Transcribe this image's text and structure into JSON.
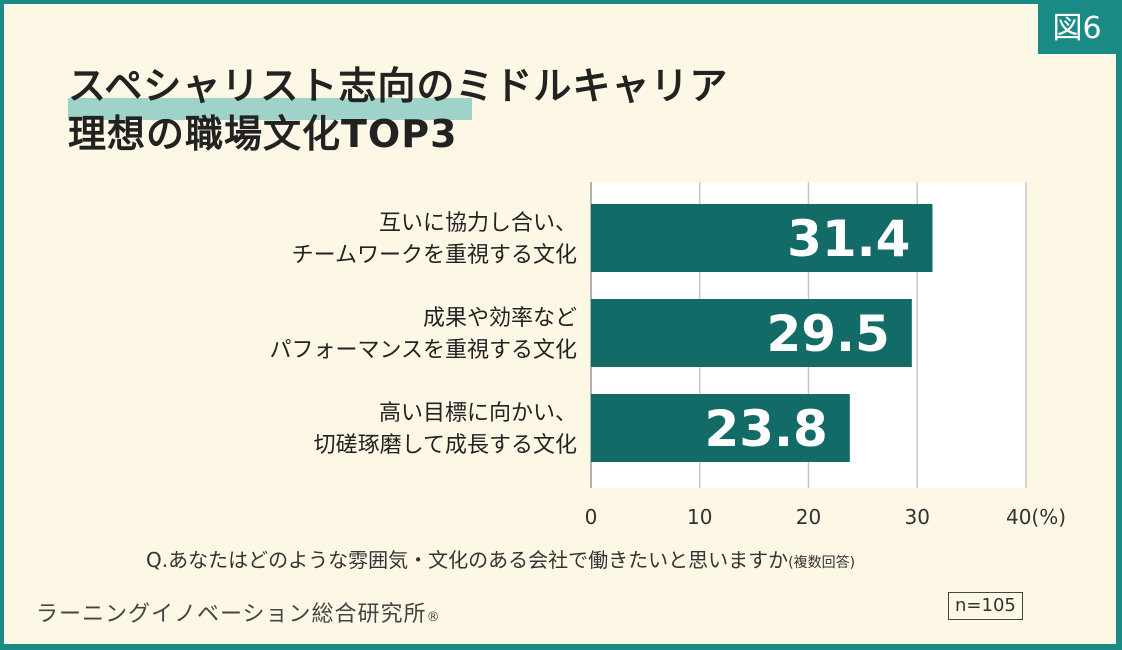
{
  "figure_label": "図6",
  "title": {
    "line1": "スペシャリスト志向のミドルキャリア",
    "line2": "理想の職場文化TOP3"
  },
  "chart_data": {
    "type": "bar",
    "orientation": "horizontal",
    "categories": [
      [
        "互いに協力し合い、",
        "チームワークを重視する文化"
      ],
      [
        "成果や効率など",
        "パフォーマンスを重視する文化"
      ],
      [
        "高い目標に向かい、",
        "切磋琢磨して成長する文化"
      ]
    ],
    "values": [
      31.4,
      29.5,
      23.8
    ],
    "value_labels": [
      "31.4",
      "29.5",
      "23.8"
    ],
    "xlim": [
      0,
      40
    ],
    "x_ticks": [
      "0",
      "10",
      "20",
      "30",
      "40(%)"
    ],
    "grid": "vertical",
    "bar_color": "#136b67"
  },
  "question": "Q.あなたはどのような雰囲気・文化のある会社で働きたいと思いますか",
  "question_note": "(複数回答)",
  "source": "ラーニングイノベーション総合研究所",
  "source_mark": "®",
  "sample_size": "n=105",
  "colors": {
    "frame": "#1a8a84",
    "background": "#fdf8e6",
    "highlight": "#9fd3c9"
  }
}
